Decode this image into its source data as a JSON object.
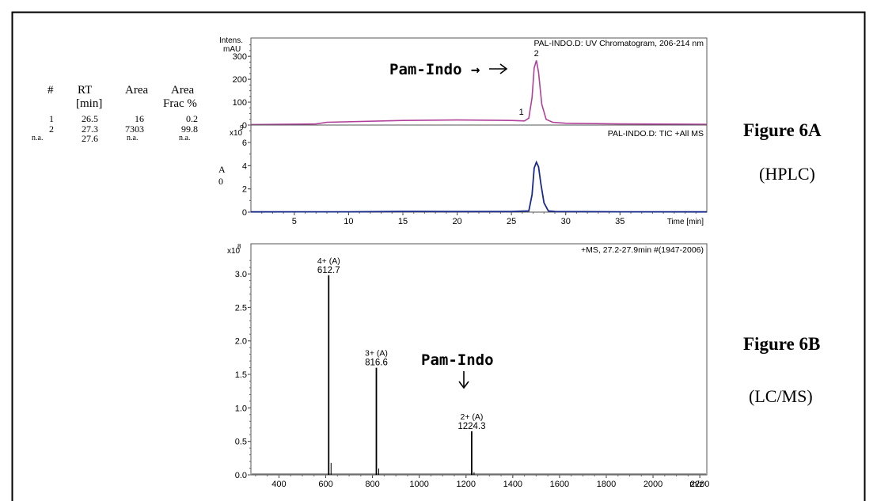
{
  "figure_labels": {
    "a_title": "Figure 6A",
    "a_sub": "(HPLC)",
    "b_title": "Figure 6B",
    "b_sub": "(LC/MS)"
  },
  "peak_table": {
    "headers": [
      "#",
      "RT",
      "Area",
      "Area"
    ],
    "subheaders": [
      "",
      "[min]",
      "",
      "Frac %"
    ],
    "rows": [
      [
        "1",
        "26.5",
        "16",
        "0.2"
      ],
      [
        "2",
        "27.3",
        "7303",
        "99.8"
      ],
      [
        "n.a.",
        "27.6",
        "n.a.",
        "n.a."
      ]
    ]
  },
  "side_letters": [
    "A",
    "0"
  ],
  "chart_data": [
    {
      "type": "line",
      "title": "PAL-INDO.D: UV Chromatogram, 206-214 nm",
      "ylabel": "Intens.",
      "yunit": "mAU",
      "ylim": [
        0,
        380
      ],
      "xlim": [
        1,
        43
      ],
      "yticks": [
        0,
        100,
        200,
        300
      ],
      "peak_labels": [
        {
          "text": "1",
          "x": 26.5
        },
        {
          "text": "2",
          "x": 27.3
        }
      ],
      "annotation": "Pam-Indo →",
      "series": [
        {
          "color": "#b0409a",
          "x": [
            1,
            7,
            8,
            15,
            20,
            25,
            26.2,
            26.6,
            26.9,
            27.1,
            27.3,
            27.5,
            27.8,
            28.2,
            28.8,
            30,
            35,
            40,
            43
          ],
          "y": [
            2,
            5,
            12,
            20,
            22,
            20,
            18,
            30,
            120,
            250,
            282,
            230,
            90,
            25,
            12,
            8,
            5,
            4,
            3
          ]
        }
      ]
    },
    {
      "type": "line",
      "title": "PAL-INDO.D: TIC +All MS",
      "ylabel": "x10",
      "yexp": "9",
      "ylim": [
        0,
        7.5
      ],
      "xlim": [
        1,
        43
      ],
      "yticks": [
        0,
        2,
        4,
        6
      ],
      "xticks": [
        5,
        10,
        15,
        20,
        25,
        30,
        35
      ],
      "xlabel": "Time [min]",
      "series": [
        {
          "color": "#1a2a8a",
          "x": [
            1,
            10,
            16,
            20,
            25,
            26.6,
            26.9,
            27.1,
            27.3,
            27.5,
            27.7,
            28.0,
            28.4,
            29,
            35,
            43
          ],
          "y": [
            0.02,
            0.03,
            0.06,
            0.05,
            0.05,
            0.1,
            1.5,
            3.8,
            4.3,
            3.9,
            2.5,
            0.8,
            0.1,
            0.05,
            0.03,
            0.02
          ]
        }
      ]
    },
    {
      "type": "bar",
      "title": "+MS, 27.2-27.9min #(1947-2006)",
      "ylabel": "x10",
      "yexp": "8",
      "xlabel": "m/z",
      "xlim": [
        280,
        2230
      ],
      "ylim": [
        0,
        3.45
      ],
      "yticks": [
        0.0,
        0.5,
        1.0,
        1.5,
        2.0,
        2.5,
        3.0
      ],
      "xticks": [
        400,
        600,
        800,
        1000,
        1200,
        1400,
        1600,
        1800,
        2000,
        2200
      ],
      "annotation": "Pam-Indo",
      "peaks": [
        {
          "mz": 612.7,
          "intensity": 2.98,
          "charge": "4+ (A)",
          "label": "612.7"
        },
        {
          "mz": 816.6,
          "intensity": 1.6,
          "charge": "3+ (A)",
          "label": "816.6"
        },
        {
          "mz": 1224.3,
          "intensity": 0.65,
          "charge": "2+ (A)",
          "label": "1224.3"
        }
      ]
    }
  ]
}
